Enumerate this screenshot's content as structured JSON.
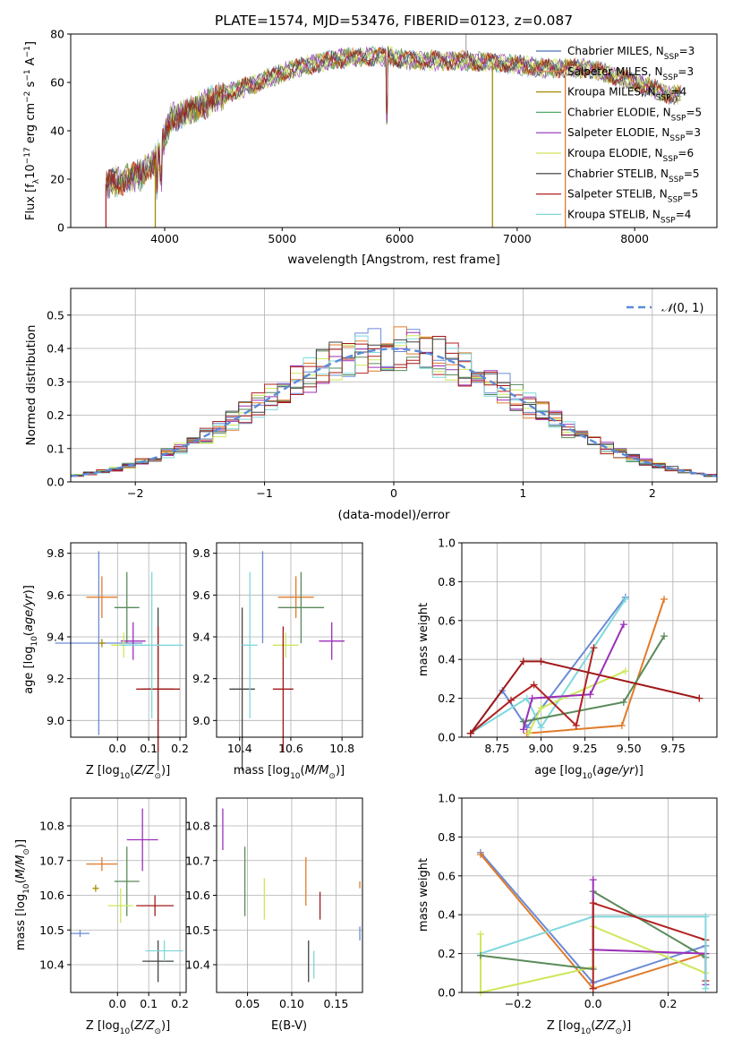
{
  "figure_title": "PLATE=1574, MJD=53476, FIBERID=0123, z=0.087",
  "legend": [
    {
      "label": "Chabrier MILES, N",
      "sub": "SSP",
      "tail": "=3",
      "color": "#4c72b0"
    },
    {
      "label": "Salpeter MILES, N",
      "sub": "SSP",
      "tail": "=3",
      "color": "#dd8452"
    },
    {
      "label": "Kroupa MILES, N",
      "sub": "SSP",
      "tail": "=4",
      "color": "#a68a00"
    },
    {
      "label": "Chabrier ELODIE, N",
      "sub": "SSP",
      "tail": "=5",
      "color": "#55a868"
    },
    {
      "label": "Salpeter ELODIE, N",
      "sub": "SSP",
      "tail": "=3",
      "color": "#8e2fb8"
    },
    {
      "label": "Kroupa ELODIE, N",
      "sub": "SSP",
      "tail": "=6",
      "color": "#d4e157"
    },
    {
      "label": "Chabrier STELIB, N",
      "sub": "SSP",
      "tail": "=5",
      "color": "#333333"
    },
    {
      "label": "Salpeter STELIB, N",
      "sub": "SSP",
      "tail": "=5",
      "color": "#b22222"
    },
    {
      "label": "Kroupa STELIB, N",
      "sub": "SSP",
      "tail": "=4",
      "color": "#7fd4dc"
    }
  ],
  "hist_legend": "𝒩(0, 1)",
  "axis_labels": {
    "spec_x": "wavelength [Angstrom, rest frame]",
    "spec_y": "Flux [f",
    "hist_x": "(data-model)/error",
    "hist_y": "Normed distribution",
    "age_y": "age  [log",
    "Z_x": "Z [log",
    "mass_x": "mass [log",
    "mass_y": "mass [log",
    "ebv_x": "E(B-V)",
    "mw_y": "mass weight",
    "mw_age_x": "age  [log"
  },
  "chart_data": [
    {
      "type": "line",
      "name": "spectrum",
      "xlim": [
        3200,
        8700
      ],
      "ylim": [
        0,
        80
      ],
      "xticks": [
        4000,
        5000,
        6000,
        7000,
        8000
      ],
      "yticks": [
        0,
        20,
        40,
        60,
        80
      ],
      "continuum": [
        [
          3500,
          18
        ],
        [
          3800,
          22
        ],
        [
          3950,
          30
        ],
        [
          4050,
          45
        ],
        [
          4300,
          50
        ],
        [
          4500,
          55
        ],
        [
          4800,
          60
        ],
        [
          5000,
          64
        ],
        [
          5200,
          67
        ],
        [
          5500,
          70
        ],
        [
          5900,
          71
        ],
        [
          6100,
          69
        ],
        [
          6500,
          69
        ],
        [
          6900,
          68
        ],
        [
          7200,
          66
        ],
        [
          7600,
          66
        ],
        [
          8000,
          60
        ],
        [
          8300,
          55
        ],
        [
          8400,
          55
        ]
      ],
      "x_range": [
        3500,
        8400
      ]
    },
    {
      "type": "histogram",
      "name": "residuals",
      "xlim": [
        -2.5,
        2.5
      ],
      "ylim": [
        0,
        0.58
      ],
      "xticks": [
        -2,
        -1,
        0,
        1,
        2
      ],
      "yticks": [
        0.0,
        0.1,
        0.2,
        0.3,
        0.4,
        0.5
      ],
      "bin_width": 0.1,
      "gaussian": {
        "mu": 0,
        "sigma": 1
      }
    },
    {
      "type": "errorbar",
      "name": "Z_vs_age",
      "xlim": [
        -0.15,
        0.22
      ],
      "ylim": [
        8.92,
        9.85
      ],
      "xticks": [
        0.0,
        0.1,
        0.2
      ],
      "yticks": [
        9.0,
        9.2,
        9.4,
        9.6,
        9.8
      ],
      "points": [
        {
          "x": -0.06,
          "y": 9.37,
          "xerr": 0.14,
          "yerr": 0.44,
          "c": 0
        },
        {
          "x": -0.05,
          "y": 9.59,
          "xerr": 0.05,
          "yerr": 0.1,
          "c": 1
        },
        {
          "x": -0.05,
          "y": 9.37,
          "xerr": 0.01,
          "yerr": 0.02,
          "c": 2
        },
        {
          "x": 0.03,
          "y": 9.54,
          "xerr": 0.04,
          "yerr": 0.17,
          "c": 3
        },
        {
          "x": 0.05,
          "y": 9.38,
          "xerr": 0.04,
          "yerr": 0.09,
          "c": 4
        },
        {
          "x": 0.02,
          "y": 9.36,
          "xerr": 0.04,
          "yerr": 0.06,
          "c": 5
        },
        {
          "x": 0.13,
          "y": 9.15,
          "xerr": 0.05,
          "yerr": 0.39,
          "c": 6
        },
        {
          "x": 0.13,
          "y": 9.15,
          "xerr": 0.07,
          "yerr": 0.3,
          "c": 7
        },
        {
          "x": 0.11,
          "y": 9.36,
          "xerr": 0.1,
          "yerr": 0.35,
          "c": 8
        }
      ]
    },
    {
      "type": "errorbar",
      "name": "mass_vs_age",
      "xlim": [
        10.31,
        10.88
      ],
      "ylim": [
        8.92,
        9.85
      ],
      "xticks": [
        10.4,
        10.6,
        10.8
      ],
      "yticks": [
        9.0,
        9.2,
        9.4,
        9.6,
        9.8
      ],
      "points": [
        {
          "x": 10.49,
          "y": 9.59,
          "xerr": 0.0,
          "yerr": 0.22,
          "c": 0
        },
        {
          "x": 10.62,
          "y": 9.59,
          "xerr": 0.07,
          "yerr": 0.1,
          "c": 1
        },
        {
          "x": 10.64,
          "y": 9.54,
          "xerr": 0.09,
          "yerr": 0.17,
          "c": 3
        },
        {
          "x": 10.76,
          "y": 9.38,
          "xerr": 0.05,
          "yerr": 0.09,
          "c": 4
        },
        {
          "x": 10.58,
          "y": 9.36,
          "xerr": 0.05,
          "yerr": 0.06,
          "c": 5
        },
        {
          "x": 10.41,
          "y": 9.15,
          "xerr": 0.05,
          "yerr": 0.39,
          "c": 6
        },
        {
          "x": 10.57,
          "y": 9.15,
          "xerr": 0.04,
          "yerr": 0.3,
          "c": 7
        },
        {
          "x": 10.44,
          "y": 9.36,
          "xerr": 0.03,
          "yerr": 0.35,
          "c": 8
        }
      ]
    },
    {
      "type": "line",
      "name": "age_vs_mass_weight",
      "xlim": [
        8.55,
        10.0
      ],
      "ylim": [
        0,
        1
      ],
      "xticks": [
        8.75,
        9.0,
        9.25,
        9.5,
        9.75
      ],
      "yticks": [
        0.0,
        0.2,
        0.4,
        0.6,
        0.8,
        1.0
      ],
      "series": [
        {
          "c": 0,
          "x": [
            8.6,
            8.78,
            8.92,
            9.48
          ],
          "y": [
            0.02,
            0.24,
            0.05,
            0.72
          ]
        },
        {
          "c": 8,
          "x": [
            8.6,
            8.92,
            9.0,
            9.48
          ],
          "y": [
            0.02,
            0.2,
            0.05,
            0.71
          ]
        },
        {
          "c": 1,
          "x": [
            8.92,
            9.46,
            9.7
          ],
          "y": [
            0.02,
            0.06,
            0.71
          ]
        },
        {
          "c": 5,
          "x": [
            8.93,
            9.0,
            9.48
          ],
          "y": [
            0.02,
            0.15,
            0.34
          ]
        },
        {
          "c": 3,
          "x": [
            8.9,
            9.47,
            9.7
          ],
          "y": [
            0.08,
            0.18,
            0.52
          ]
        },
        {
          "c": 4,
          "x": [
            8.9,
            8.95,
            9.28,
            9.47
          ],
          "y": [
            0.04,
            0.2,
            0.22,
            0.58
          ]
        },
        {
          "c": 7,
          "x": [
            8.6,
            8.83,
            8.96,
            9.2,
            9.3
          ],
          "y": [
            0.02,
            0.19,
            0.27,
            0.06,
            0.46
          ]
        },
        {
          "c": 9,
          "x": [
            8.6,
            8.9,
            9.0,
            9.9
          ],
          "y": [
            0.02,
            0.39,
            0.39,
            0.2
          ]
        }
      ]
    },
    {
      "type": "errorbar",
      "name": "Z_vs_mass",
      "xlim": [
        -0.15,
        0.22
      ],
      "ylim": [
        10.32,
        10.88
      ],
      "xticks": [
        0.0,
        0.1,
        0.2
      ],
      "yticks": [
        10.4,
        10.5,
        10.6,
        10.7,
        10.8
      ],
      "points": [
        {
          "x": -0.12,
          "y": 10.49,
          "xerr": 0.03,
          "yerr": 0.01,
          "c": 0
        },
        {
          "x": -0.05,
          "y": 10.69,
          "xerr": 0.05,
          "yerr": 0.02,
          "c": 1
        },
        {
          "x": -0.07,
          "y": 10.62,
          "xerr": 0.01,
          "yerr": 0.01,
          "c": 2
        },
        {
          "x": 0.03,
          "y": 10.64,
          "xerr": 0.04,
          "yerr": 0.1,
          "c": 3
        },
        {
          "x": 0.08,
          "y": 10.76,
          "xerr": 0.05,
          "yerr": 0.09,
          "c": 4
        },
        {
          "x": 0.01,
          "y": 10.57,
          "xerr": 0.04,
          "yerr": 0.05,
          "c": 5
        },
        {
          "x": 0.13,
          "y": 10.41,
          "xerr": 0.05,
          "yerr": 0.06,
          "c": 6
        },
        {
          "x": 0.12,
          "y": 10.57,
          "xerr": 0.06,
          "yerr": 0.03,
          "c": 7
        },
        {
          "x": 0.15,
          "y": 10.44,
          "xerr": 0.06,
          "yerr": 0.03,
          "c": 8
        }
      ]
    },
    {
      "type": "errorbar",
      "name": "ebv_vs_mass",
      "xlim": [
        0.015,
        0.18
      ],
      "ylim": [
        10.32,
        10.88
      ],
      "xticks": [
        0.05,
        0.1,
        0.15
      ],
      "yticks": [
        10.4,
        10.5,
        10.6,
        10.7,
        10.8
      ],
      "points": [
        {
          "x": 0.177,
          "y": 10.49,
          "xerr": 0.0,
          "yerr": 0.02,
          "c": 0
        },
        {
          "x": 0.116,
          "y": 10.64,
          "xerr": 0.0,
          "yerr": 0.07,
          "c": 1
        },
        {
          "x": 0.047,
          "y": 10.64,
          "xerr": 0.0,
          "yerr": 0.1,
          "c": 3
        },
        {
          "x": 0.022,
          "y": 10.79,
          "xerr": 0.0,
          "yerr": 0.06,
          "c": 4
        },
        {
          "x": 0.069,
          "y": 10.59,
          "xerr": 0.0,
          "yerr": 0.06,
          "c": 5
        },
        {
          "x": 0.119,
          "y": 10.41,
          "xerr": 0.0,
          "yerr": 0.06,
          "c": 6
        },
        {
          "x": 0.132,
          "y": 10.57,
          "xerr": 0.0,
          "yerr": 0.04,
          "c": 7
        },
        {
          "x": 0.125,
          "y": 10.4,
          "xerr": 0.0,
          "yerr": 0.04,
          "c": 8
        },
        {
          "x": 0.177,
          "y": 10.63,
          "xerr": 0.0,
          "yerr": 0.01,
          "c": 1
        }
      ]
    },
    {
      "type": "line",
      "name": "Z_vs_mass_weight",
      "xlim": [
        -0.35,
        0.33
      ],
      "ylim": [
        0,
        1
      ],
      "xticks": [
        -0.2,
        0.0,
        0.2
      ],
      "yticks": [
        0.0,
        0.2,
        0.4,
        0.6,
        0.8,
        1.0
      ],
      "series": [
        {
          "c": 0,
          "x": [
            -0.3,
            0.0,
            0.3
          ],
          "y": [
            0.72,
            0.05,
            0.24
          ]
        },
        {
          "c": 1,
          "x": [
            -0.3,
            0.0,
            0.3
          ],
          "y": [
            0.71,
            0.02,
            0.2
          ]
        },
        {
          "c": 8,
          "x": [
            -0.3,
            0.0,
            0.3
          ],
          "y": [
            0.2,
            0.39,
            0.39
          ]
        },
        {
          "c": 5,
          "x": [
            -0.3,
            -0.3,
            0.0,
            0.0,
            0.3
          ],
          "y": [
            0.3,
            0.0,
            0.13,
            0.34,
            0.1
          ]
        },
        {
          "c": 3,
          "x": [
            -0.3,
            0.0,
            0.0,
            0.3
          ],
          "y": [
            0.19,
            0.12,
            0.52,
            0.18
          ]
        },
        {
          "c": 4,
          "x": [
            0.0,
            0.0,
            0.3,
            0.3
          ],
          "y": [
            0.58,
            0.22,
            0.2,
            0.04
          ]
        },
        {
          "c": 7,
          "x": [
            0.0,
            0.0,
            0.3,
            0.3
          ],
          "y": [
            0.02,
            0.46,
            0.27,
            0.06
          ]
        },
        {
          "c": 8,
          "x": [
            0.3,
            0.3
          ],
          "y": [
            0.39,
            0.02
          ]
        }
      ]
    }
  ],
  "colors": [
    "#6b8bd6",
    "#e07b2a",
    "#a68a00",
    "#5a8a5a",
    "#9b30b8",
    "#cde85a",
    "#444444",
    "#b22222",
    "#7fd8dc",
    "#a01818"
  ]
}
